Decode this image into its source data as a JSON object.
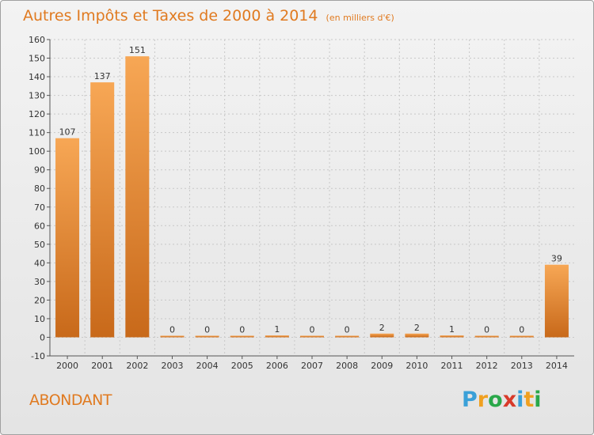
{
  "header": {
    "title": "Autres Impôts et Taxes de 2000 à 2014",
    "unit": "(en milliers d'€)"
  },
  "footer": {
    "commune": "ABONDANT",
    "logo": "Proxiti"
  },
  "colors": {
    "bar_light": "#f7a755",
    "bar_dark": "#c8691a",
    "title": "#e07a20",
    "grid": "#c8c8c8"
  },
  "chart_data": {
    "type": "bar",
    "title": "Autres Impôts et Taxes de 2000 à 2014",
    "subtitle": "(en milliers d'€)",
    "categories": [
      "2000",
      "2001",
      "2002",
      "2003",
      "2004",
      "2005",
      "2006",
      "2007",
      "2008",
      "2009",
      "2010",
      "2011",
      "2012",
      "2013",
      "2014"
    ],
    "values": [
      107,
      137,
      151,
      0,
      0,
      0,
      1,
      0,
      0,
      2,
      2,
      1,
      0,
      0,
      39
    ],
    "data_labels": [
      "107",
      "137",
      "151",
      "0",
      "0",
      "0",
      "1",
      "0",
      "0",
      "2",
      "2",
      "1",
      "0",
      "0",
      "39"
    ],
    "ylim": [
      -10,
      160
    ],
    "yticks": [
      -10,
      0,
      10,
      20,
      30,
      40,
      50,
      60,
      70,
      80,
      90,
      100,
      110,
      120,
      130,
      140,
      150,
      160
    ],
    "grid": true
  }
}
